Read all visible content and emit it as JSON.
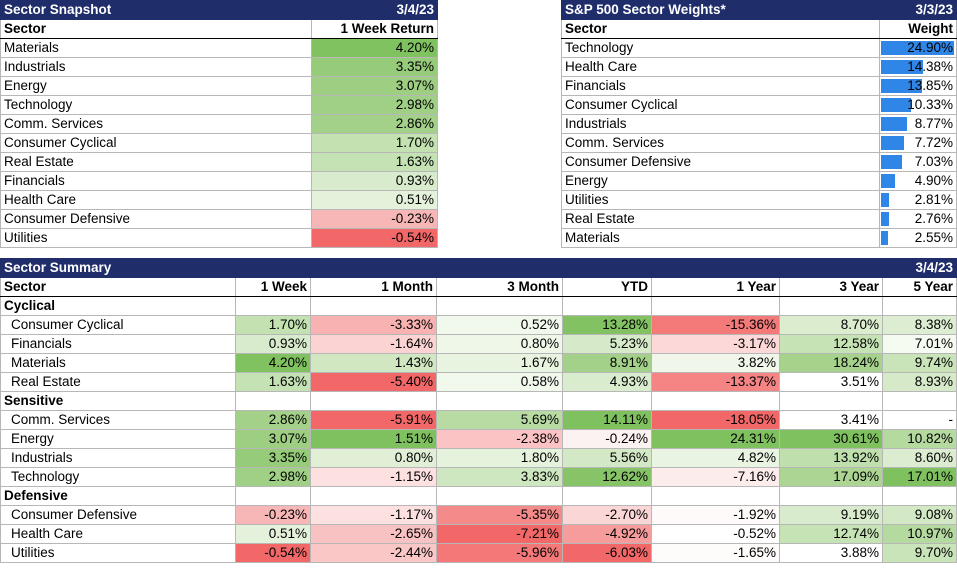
{
  "snapshot": {
    "title": "Sector Snapshot",
    "date": "3/4/23",
    "col_sector": "Sector",
    "col_return": "1 Week Return",
    "rows": [
      {
        "sector": "Materials",
        "ret": "4.20%",
        "bg": "#80c160"
      },
      {
        "sector": "Industrials",
        "ret": "3.35%",
        "bg": "#96cb7a"
      },
      {
        "sector": "Energy",
        "ret": "3.07%",
        "bg": "#9dce82"
      },
      {
        "sector": "Technology",
        "ret": "2.98%",
        "bg": "#a0d085"
      },
      {
        "sector": "Comm. Services",
        "ret": "2.86%",
        "bg": "#a3d189"
      },
      {
        "sector": "Consumer Cyclical",
        "ret": "1.70%",
        "bg": "#c3e1b1"
      },
      {
        "sector": "Real Estate",
        "ret": "1.63%",
        "bg": "#c5e2b4"
      },
      {
        "sector": "Financials",
        "ret": "0.93%",
        "bg": "#d8ebcc"
      },
      {
        "sector": "Health Care",
        "ret": "0.51%",
        "bg": "#e4f1db"
      },
      {
        "sector": "Consumer Defensive",
        "ret": "-0.23%",
        "bg": "#f7b7b7"
      },
      {
        "sector": "Utilities",
        "ret": "-0.54%",
        "bg": "#f26868"
      }
    ]
  },
  "weights": {
    "title": "S&P 500 Sector Weights*",
    "date": "3/3/23",
    "col_sector": "Sector",
    "col_weight": "Weight",
    "rows": [
      {
        "sector": "Technology",
        "weight": "24.90%",
        "pct": 24.9
      },
      {
        "sector": "Health Care",
        "weight": "14.38%",
        "pct": 14.38
      },
      {
        "sector": "Financials",
        "weight": "13.85%",
        "pct": 13.85
      },
      {
        "sector": "Consumer Cyclical",
        "weight": "10.33%",
        "pct": 10.33
      },
      {
        "sector": "Industrials",
        "weight": "8.77%",
        "pct": 8.77
      },
      {
        "sector": "Comm. Services",
        "weight": "7.72%",
        "pct": 7.72
      },
      {
        "sector": "Consumer Defensive",
        "weight": "7.03%",
        "pct": 7.03
      },
      {
        "sector": "Energy",
        "weight": "4.90%",
        "pct": 4.9
      },
      {
        "sector": "Utilities",
        "weight": "2.81%",
        "pct": 2.81
      },
      {
        "sector": "Real Estate",
        "weight": "2.76%",
        "pct": 2.76
      },
      {
        "sector": "Materials",
        "weight": "2.55%",
        "pct": 2.55
      }
    ]
  },
  "summary": {
    "title": "Sector Summary",
    "date": "3/4/23",
    "headers": [
      "Sector",
      "1 Week",
      "1 Month",
      "3 Month",
      "YTD",
      "1 Year",
      "3 Year",
      "5 Year"
    ],
    "groups": [
      {
        "name": "Cyclical",
        "rows": [
          {
            "sector": "Consumer Cyclical",
            "vals": [
              "1.70%",
              "-3.33%",
              "0.52%",
              "13.28%",
              "-15.36%",
              "8.70%",
              "8.38%"
            ],
            "bgs": [
              "#c3e1b1",
              "#f8b2b2",
              "#f1f8ec",
              "#83c263",
              "#f47a7a",
              "#dbeccf",
              "#dcedd1"
            ]
          },
          {
            "sector": "Financials",
            "vals": [
              "0.93%",
              "-1.64%",
              "0.80%",
              "5.23%",
              "-3.17%",
              "12.58%",
              "7.01%"
            ],
            "bgs": [
              "#d8ebcc",
              "#fbd3d3",
              "#eef7e8",
              "#d6eac9",
              "#fcd8d8",
              "#c6e3b5",
              "#f6fbf2"
            ]
          },
          {
            "sector": "Materials",
            "vals": [
              "4.20%",
              "1.43%",
              "1.67%",
              "8.91%",
              "3.82%",
              "18.24%",
              "9.74%"
            ],
            "bgs": [
              "#80c160",
              "#d0e7c1",
              "#e8f4e0",
              "#a4d18a",
              "#f0f7ea",
              "#a6d28c",
              "#c9e4b9"
            ]
          },
          {
            "sector": "Real Estate",
            "vals": [
              "1.63%",
              "-5.40%",
              "0.58%",
              "4.93%",
              "-13.37%",
              "3.51%",
              "8.93%"
            ],
            "bgs": [
              "#c5e2b4",
              "#f26868",
              "#f1f8ec",
              "#daecce",
              "#f58585",
              "#ffffff",
              "#d6eac9"
            ]
          }
        ]
      },
      {
        "name": "Sensitive",
        "rows": [
          {
            "sector": "Comm. Services",
            "vals": [
              "2.86%",
              "-5.91%",
              "5.69%",
              "14.11%",
              "-18.05%",
              "3.41%",
              "-"
            ],
            "bgs": [
              "#a3d189",
              "#f26868",
              "#b8dba3",
              "#7fc05f",
              "#f26868",
              "#ffffff",
              "#ffffff"
            ]
          },
          {
            "sector": "Energy",
            "vals": [
              "3.07%",
              "1.51%",
              "-2.38%",
              "-0.24%",
              "24.31%",
              "30.61%",
              "10.82%"
            ],
            "bgs": [
              "#9dce82",
              "#7fc05f",
              "#fbc3c3",
              "#fdf2f2",
              "#7fc05f",
              "#7fc05f",
              "#b5daa0"
            ]
          },
          {
            "sector": "Industrials",
            "vals": [
              "3.35%",
              "0.80%",
              "1.80%",
              "5.56%",
              "4.82%",
              "13.92%",
              "8.60%"
            ],
            "bgs": [
              "#96cb7a",
              "#e1efd7",
              "#e5f2dc",
              "#d3e9c5",
              "#e9f4e2",
              "#bfdfac",
              "#dbecd0"
            ]
          },
          {
            "sector": "Technology",
            "vals": [
              "2.98%",
              "-1.15%",
              "3.83%",
              "12.62%",
              "-7.16%",
              "17.09%",
              "17.01%"
            ],
            "bgs": [
              "#a0d085",
              "#fde0e0",
              "#cfe7c0",
              "#87c468",
              "#fcecec",
              "#acd594",
              "#7fc05f"
            ]
          }
        ]
      },
      {
        "name": "Defensive",
        "rows": [
          {
            "sector": "Consumer Defensive",
            "vals": [
              "-0.23%",
              "-1.17%",
              "-5.35%",
              "-2.70%",
              "-1.92%",
              "9.19%",
              "9.08%"
            ],
            "bgs": [
              "#f7b7b7",
              "#fde1e1",
              "#f58a8a",
              "#fbd6d6",
              "#fefafa",
              "#d8ebcc",
              "#d3e9c5"
            ]
          },
          {
            "sector": "Health Care",
            "vals": [
              "0.51%",
              "-2.65%",
              "-7.21%",
              "-4.92%",
              "-0.52%",
              "12.74%",
              "10.97%"
            ],
            "bgs": [
              "#e4f1db",
              "#f9c2c2",
              "#f26868",
              "#f79c9c",
              "#ffffff",
              "#c6e3b5",
              "#b5daa0"
            ]
          },
          {
            "sector": "Utilities",
            "vals": [
              "-0.54%",
              "-2.44%",
              "-5.96%",
              "-6.03%",
              "-1.65%",
              "3.88%",
              "9.70%"
            ],
            "bgs": [
              "#f26868",
              "#fac6c6",
              "#f47878",
              "#f26868",
              "#fefbfb",
              "#ffffff",
              "#c9e4b9"
            ]
          }
        ]
      }
    ]
  }
}
